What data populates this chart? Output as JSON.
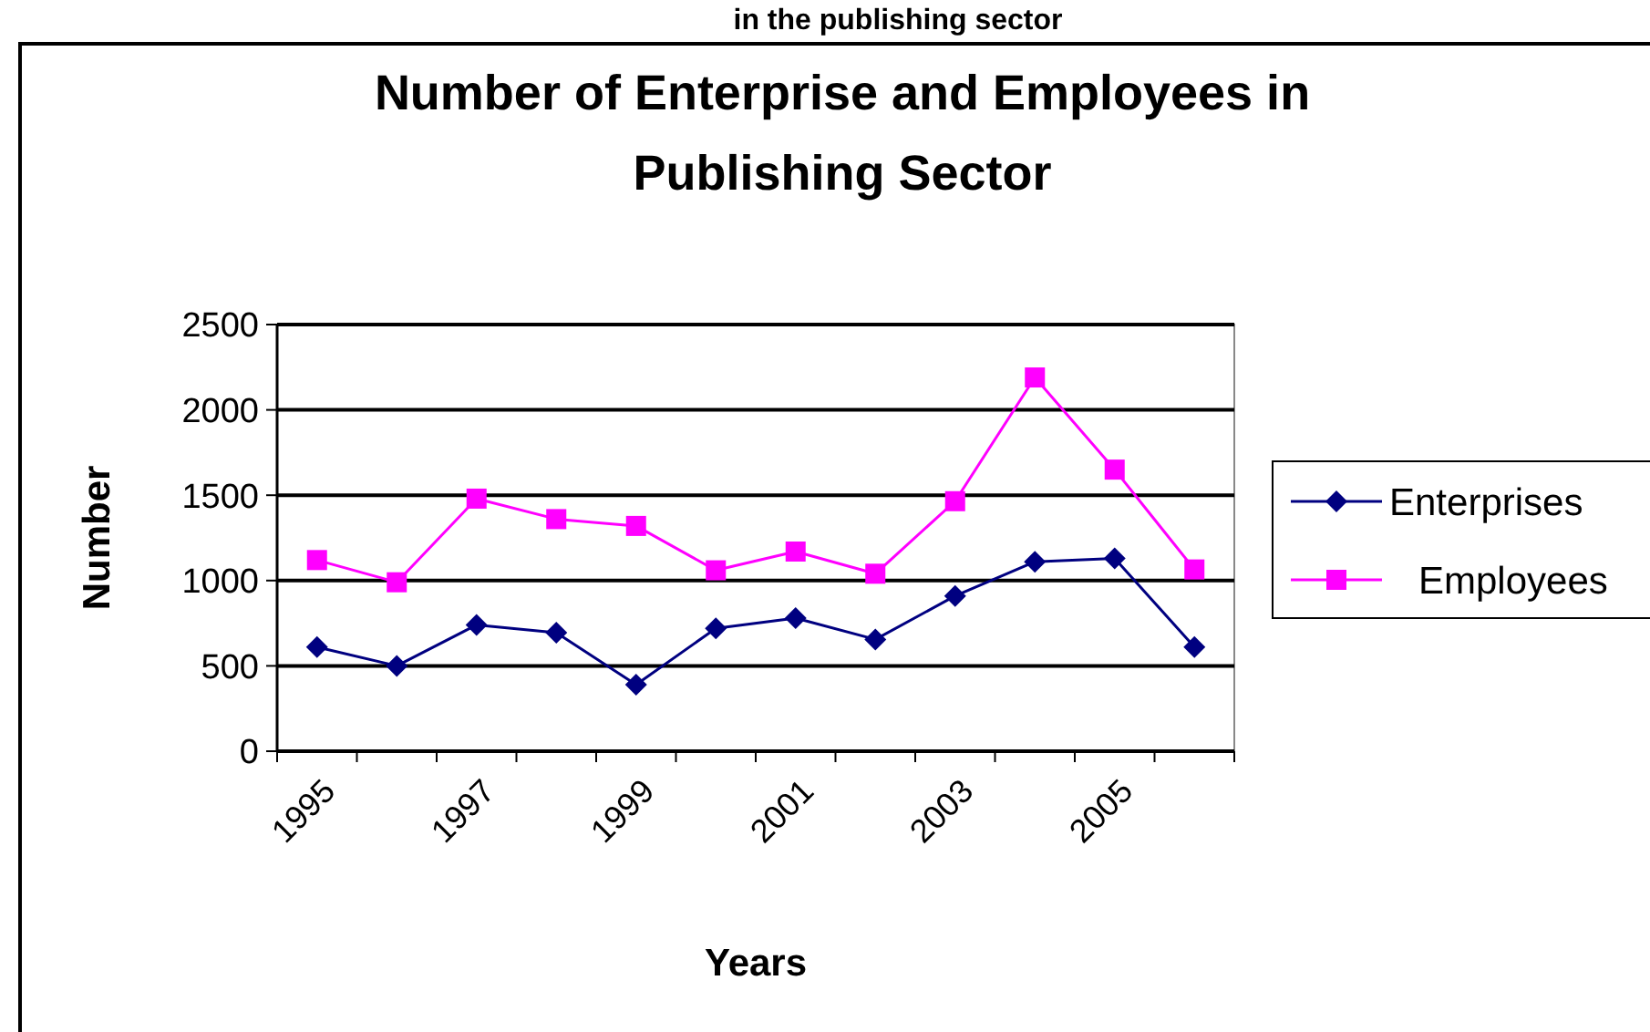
{
  "chart_data": {
    "type": "line",
    "title": "Number of Enterprise and Employees in Publishing Sector",
    "xlabel": "Years",
    "ylabel": "Number",
    "annotations": [
      "in the publishing sector"
    ],
    "categories": [
      "1995",
      null,
      "1997",
      null,
      "1999",
      null,
      "2001",
      null,
      "2003",
      null,
      "2005",
      null
    ],
    "series": [
      {
        "name": "Enterprises",
        "color": "#000080",
        "marker": "diamond",
        "values": [
          610,
          500,
          740,
          695,
          390,
          720,
          780,
          655,
          910,
          1110,
          1130,
          610
        ]
      },
      {
        "name": "Employees",
        "color": "#ff00ff",
        "marker": "square",
        "values": [
          1120,
          990,
          1480,
          1360,
          1320,
          1060,
          1170,
          1040,
          1465,
          2190,
          1650,
          1065
        ]
      }
    ],
    "ylim": [
      0,
      2500
    ],
    "yticks": [
      0,
      500,
      1000,
      1500,
      2000,
      2500
    ],
    "grid": "y",
    "legend": "right"
  }
}
